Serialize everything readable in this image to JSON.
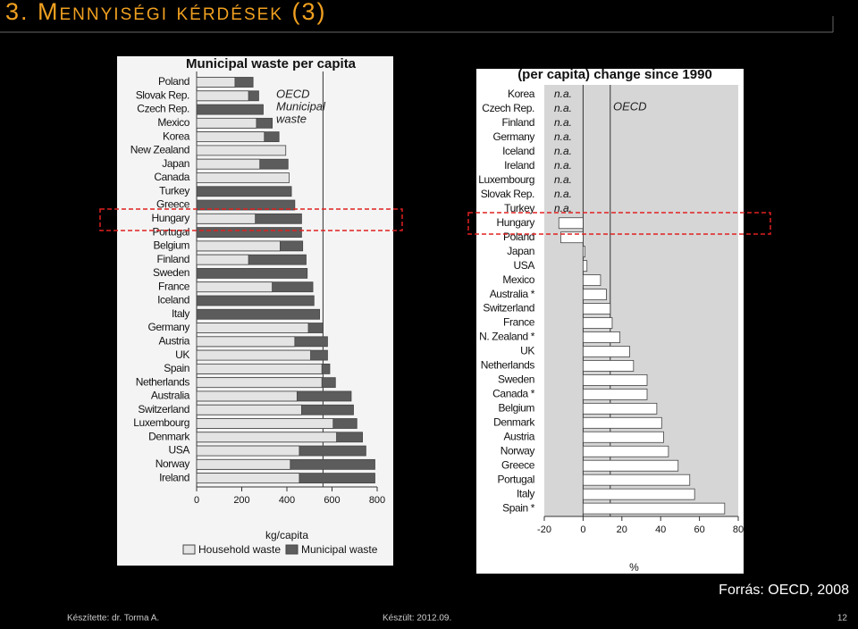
{
  "slide": {
    "title": "3. Mennyiségi kérdések (3)",
    "source": "Forrás: OECD, 2008",
    "author": "Készítette: dr. Torma A.",
    "date": "Készült: 2012.09.",
    "page": "12"
  },
  "chart_data": [
    {
      "type": "hbar",
      "title": "Municipal waste per capita",
      "x_label": "kg/capita",
      "categories": [
        "Poland",
        "Slovak Rep.",
        "Czech Rep.",
        "Mexico",
        "Korea",
        "New Zealand",
        "Japan",
        "Canada",
        "Turkey",
        "Greece",
        "Hungary",
        "Portugal",
        "Belgium",
        "Finland",
        "Sweden",
        "France",
        "Iceland",
        "Italy",
        "Germany",
        "Austria",
        "UK",
        "Spain",
        "Netherlands",
        "Australia",
        "Switzerland",
        "Luxembourg",
        "Denmark",
        "USA",
        "Norway",
        "Ireland"
      ],
      "series": [
        {
          "name": "Municipal waste",
          "color": "#5c5c5c",
          "values": [
            250,
            275,
            295,
            335,
            365,
            null,
            405,
            null,
            420,
            435,
            465,
            465,
            470,
            485,
            490,
            515,
            520,
            545,
            560,
            580,
            580,
            590,
            615,
            685,
            695,
            710,
            735,
            750,
            790,
            790
          ]
        },
        {
          "name": "Household waste",
          "color": "#e4e4e4",
          "values": [
            170,
            230,
            null,
            265,
            300,
            395,
            280,
            410,
            null,
            null,
            260,
            null,
            370,
            230,
            null,
            335,
            null,
            null,
            495,
            435,
            505,
            555,
            555,
            445,
            465,
            605,
            620,
            455,
            415,
            455
          ]
        }
      ],
      "xlim": [
        0,
        800
      ],
      "xticks": [
        0,
        200,
        400,
        600,
        800
      ],
      "reference": {
        "value": 560,
        "label_lines": [
          "OECD",
          "Municipal",
          "waste"
        ]
      }
    },
    {
      "type": "hbar",
      "title": "(per capita) change since 1990",
      "x_label": "%",
      "categories": [
        "Korea",
        "Czech Rep.",
        "Finland",
        "Germany",
        "Iceland",
        "Ireland",
        "Luxembourg",
        "Slovak Rep.",
        "Turkey",
        "Hungary",
        "Poland",
        "Japan",
        "USA",
        "Mexico",
        "Australia *",
        "Switzerland",
        "France",
        "N. Zealand *",
        "UK",
        "Netherlands",
        "Sweden",
        "Canada *",
        "Belgium",
        "Denmark",
        "Austria",
        "Norway",
        "Greece",
        "Portugal",
        "Italy",
        "Spain *"
      ],
      "series": [
        {
          "name": "change since 1990",
          "color": "#ffffff",
          "values": [
            null,
            null,
            null,
            null,
            null,
            null,
            null,
            null,
            null,
            -12.5,
            -11.5,
            1,
            2,
            9,
            12,
            14,
            15,
            19,
            24,
            26,
            33,
            33,
            38,
            40.5,
            41.5,
            44,
            49,
            55,
            57.5,
            73
          ],
          "value_labels": [
            "n.a.",
            "n.a.",
            "n.a.",
            "n.a.",
            "n.a.",
            "n.a.",
            "n.a.",
            "n.a.",
            "n.a.",
            null,
            null,
            null,
            null,
            null,
            null,
            null,
            null,
            null,
            null,
            null,
            null,
            null,
            null,
            null,
            null,
            null,
            null,
            null,
            null,
            null
          ]
        }
      ],
      "xlim": [
        -20,
        80
      ],
      "xticks": [
        -20,
        0,
        20,
        40,
        60,
        80
      ],
      "reference": {
        "value": 14,
        "label_lines": [
          "OECD"
        ]
      }
    }
  ]
}
